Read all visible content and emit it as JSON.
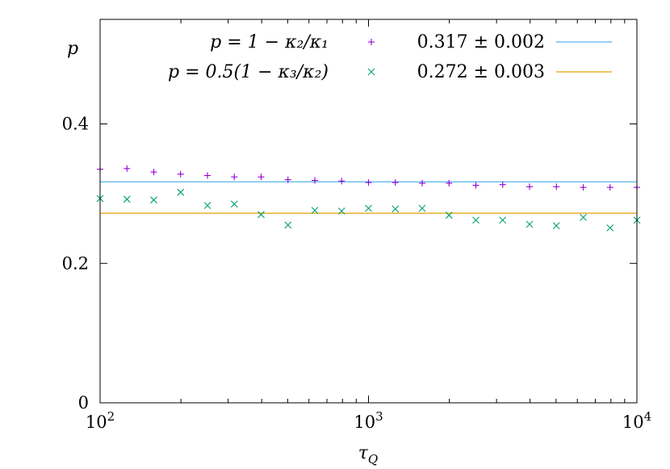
{
  "chart_data": {
    "type": "scatter",
    "xscale": "log",
    "xlim": [
      100,
      10000
    ],
    "ylim": [
      0,
      0.55
    ],
    "xlabel": "τ_Q",
    "ylabel": "p",
    "x_ticks": [
      {
        "value": 100,
        "base": "10",
        "exp": "2"
      },
      {
        "value": 1000,
        "base": "10",
        "exp": "3"
      },
      {
        "value": 10000,
        "base": "10",
        "exp": "4"
      }
    ],
    "y_ticks": [
      {
        "value": 0,
        "label": "0"
      },
      {
        "value": 0.2,
        "label": "0.2"
      },
      {
        "value": 0.4,
        "label": "0.4"
      }
    ],
    "grid": false,
    "legend_position": "top",
    "series": [
      {
        "name": "p = 1 − κ₂/κ₁",
        "marker": "plus",
        "color": "#9400d3",
        "x": [
          100,
          125.9,
          158.5,
          199.5,
          251.2,
          316.2,
          398.1,
          501.2,
          631,
          794.3,
          1000,
          1258.9,
          1584.9,
          1995.3,
          2511.9,
          3162.3,
          3981.1,
          5011.9,
          6309.6,
          7943.3,
          10000
        ],
        "y": [
          0.335,
          0.336,
          0.331,
          0.328,
          0.326,
          0.324,
          0.324,
          0.32,
          0.319,
          0.318,
          0.316,
          0.316,
          0.315,
          0.315,
          0.312,
          0.313,
          0.31,
          0.31,
          0.309,
          0.309,
          0.309
        ]
      },
      {
        "name": "p = 0.5(1 − κ₃/κ₂)",
        "marker": "cross",
        "color": "#009e73",
        "x": [
          100,
          125.9,
          158.5,
          199.5,
          251.2,
          316.2,
          398.1,
          501.2,
          631,
          794.3,
          1000,
          1258.9,
          1584.9,
          1995.3,
          2511.9,
          3162.3,
          3981.1,
          5011.9,
          6309.6,
          7943.3,
          10000
        ],
        "y": [
          0.293,
          0.292,
          0.291,
          0.302,
          0.283,
          0.285,
          0.27,
          0.255,
          0.276,
          0.275,
          0.279,
          0.278,
          0.279,
          0.269,
          0.262,
          0.262,
          0.256,
          0.254,
          0.266,
          0.251,
          0.262
        ]
      }
    ],
    "fit_lines": [
      {
        "label": "0.317 ± 0.002",
        "value": 0.317,
        "color": "#56b4e9"
      },
      {
        "label": "0.272 ± 0.003",
        "value": 0.272,
        "color": "#e69f00"
      }
    ]
  }
}
